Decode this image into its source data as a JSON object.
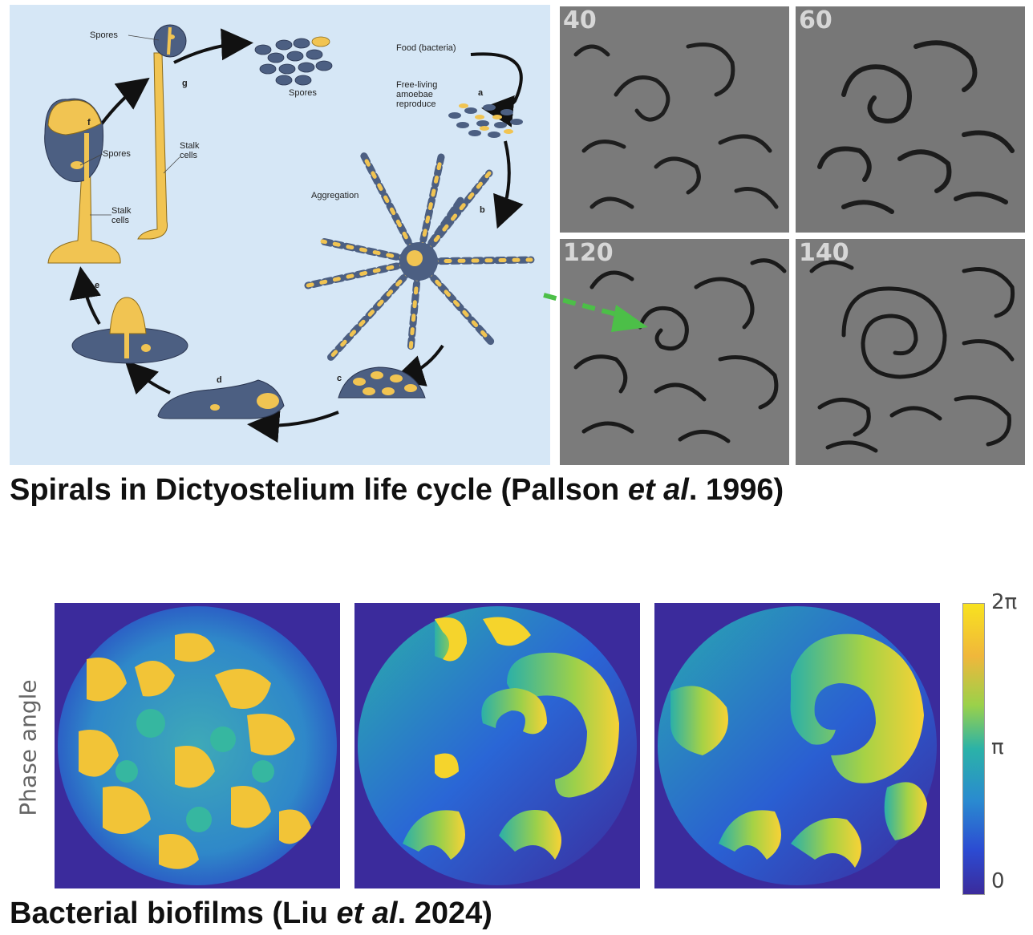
{
  "top_figure": {
    "labels": {
      "spores_top": "Spores",
      "spores_cluster": "Spores",
      "food": "Food (bacteria)",
      "free_living_1": "Free-living",
      "free_living_2": "amoebae",
      "free_living_3": "reproduce",
      "aggregation": "Aggregation",
      "spores_left": "Spores",
      "stalk_cells_mid_1": "Stalk",
      "stalk_cells_mid_2": "cells",
      "stalk_cells_left_1": "Stalk",
      "stalk_cells_left_2": "cells"
    },
    "stages": {
      "a": "a",
      "b": "b",
      "c": "c",
      "d": "d",
      "e": "e",
      "f": "f",
      "g": "g"
    },
    "time_labels": [
      "40",
      "60",
      "120",
      "140"
    ],
    "caption": {
      "prefix": "Spirals in Dictyostelium life cycle (Pallson ",
      "italic": "et al",
      "suffix": ". 1996)"
    },
    "colors": {
      "background": "#d6e7f6",
      "cell_blue": "#4c5f82",
      "cell_yellow": "#f1c452",
      "arrow_green": "#4cbf48"
    }
  },
  "bottom_figure": {
    "ylabel": "Phase angle",
    "colorbar_ticks": {
      "top": "2π",
      "middle": "π",
      "bottom": "0"
    },
    "caption": {
      "prefix": "Bacterial biofilms (Liu ",
      "italic": "et al",
      "suffix": ". 2024)"
    },
    "colors": {
      "low": "#3a2a9a",
      "mid": "#21a8a8",
      "high": "#f5e52a"
    }
  }
}
